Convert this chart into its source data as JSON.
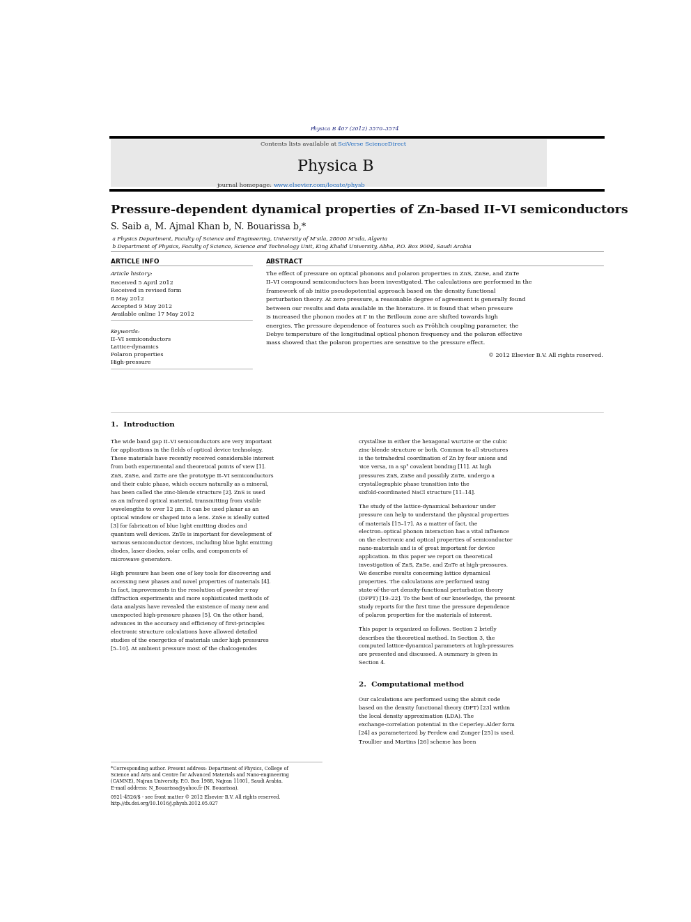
{
  "page_width": 9.92,
  "page_height": 13.23,
  "background": "#ffffff",
  "journal_ref": "Physica B 407 (2012) 3570–3574",
  "journal_ref_color": "#1a237e",
  "header_bg": "#e8e8e8",
  "contents_text": "Contents lists available at ",
  "sciverse_text": "SciVerse ScienceDirect",
  "journal_name": "Physica B",
  "journal_url": "www.elsevier.com/locate/physb",
  "journal_url_color": "#1565c0",
  "title": "Pressure-dependent dynamical properties of Zn-based II–VI semiconductors",
  "authors": "S. Saib a, M. Ajmal Khan b, N. Bouarissa b,*",
  "affil_a": " a Physics Department, Faculty of Science and Engineering, University of M’sila, 28000 M’sila, Algeria",
  "affil_b": " b Department of Physics, Faculty of Science, Science and Technology Unit, King Khalid University, Abha, P.O. Box 9004, Saudi Arabia",
  "article_info_title": "ARTICLE INFO",
  "abstract_title": "ABSTRACT",
  "article_history_label": "Article history:",
  "received": "Received 5 April 2012",
  "received_revised": "Received in revised form",
  "received_revised_date": "8 May 2012",
  "accepted": "Accepted 9 May 2012",
  "available": "Available online 17 May 2012",
  "keywords_label": "Keywords:",
  "keywords": [
    "II–VI semiconductors",
    "Lattice-dynamics",
    "Polaron properties",
    "High-pressure"
  ],
  "abstract_text": "The effect of pressure on optical phonons and polaron properties in ZnS, ZnSe, and ZnTe II–VI compound semiconductors has been investigated. The calculations are performed in the framework of ab initio pseudopotential approach based on the density functional perturbation theory. At zero pressure, a reasonable degree of agreement is generally found between our results and data available in the literature. It is found that when pressure is increased the phonon modes at Γ in the Brillouin zone are shifted towards high energies. The pressure dependence of features such as Fröhlich coupling parameter, the Debye temperature of the longitudinal optical phonon frequency and the polaron effective mass showed that the polaron properties are sensitive to the pressure effect.",
  "copyright": "© 2012 Elsevier B.V. All rights reserved.",
  "section1_title": "1.  Introduction",
  "section1_col1": "   The wide band gap II–VI semiconductors are very important for applications in the fields of optical device technology. These materials have recently received considerable interest from both experimental and theoretical points of view [1]. ZnS, ZnSe, and ZnTe are the prototype II–VI semiconductors and their cubic phase, which occurs naturally as a mineral, has been called the zinc-blende structure [2]. ZnS is used as an infrared optical material, transmitting from visible wavelengths to over 12 μm. It can be used planar as an optical window or shaped into a lens. ZnSe is ideally suited [3] for fabrication of blue light emitting diodes and quantum well devices. ZnTe is important for development of various semiconductor devices, including blue light emitting diodes, laser diodes, solar cells, and components of microwave generators.",
  "section1_col1b": "   High pressure has been one of key tools for discovering and accessing new phases and novel properties of materials [4]. In fact, improvements in the resolution of powder x-ray diffraction experiments and more sophisticated methods of data analysis have revealed the existence of many new and unexpected high-pressure phases [5]. On the other hand, advances in the accuracy and efficiency of first-principles electronic structure calculations have allowed detailed studies of the energetics of materials under high pressures [5–10]. At ambient pressure most of the chalcogenides",
  "section1_col2": "crystallise in either the hexagonal wurtzite or the cubic zinc-blende structure or both. Common to all structures is the tetrahedral coordination of Zn by four anions and vice versa, in a sp³ covalent bonding [11]. At high pressures ZnS, ZnSe and possibly ZnTe, undergo a crystallographic phase transition into the sixfold-coordinated NaCl structure [11–14].",
  "section1_col2b": "   The study of the lattice-dynamical behaviour under pressure can help to understand the physical properties of materials [15–17]. As a matter of fact, the electron–optical phonon interaction has a vital influence on the electronic and optical properties of semiconductor nano-materials and is of great important for device application. In this paper we report on theoretical investigation of ZnS, ZnSe, and ZnTe at high-pressures. We describe results concerning lattice dynamical properties. The calculations are performed using state-of-the-art density-functional perturbation theory (DFPT) [19–22]. To the best of our knowledge, the present study reports for the first time the pressure dependence of polaron properties for the materials of interest.",
  "section1_col2c": "   This paper is organized as follows. Section 2 briefly describes the theoretical method. In Section 3, the computed lattice-dynamical parameters at high-pressures are presented and discussed. A summary is given in Section 4.",
  "section2_title": "2.  Computational method",
  "section2_text": "   Our calculations are performed using the abinit code based on the density functional theory (DFT) [23] within the local density approximation (LDA). The exchange-correlation potential in the Ceperley–Alder form [24] as parameterized by Perdew and Zunger [25] is used. Troullier and Martins [26] scheme has been",
  "footer_note_lines": [
    "*Corresponding author. Present address: Department of Physics, College of",
    "Science and Arts and Centre for Advanced Materials and Nano-engineering",
    "(CAMNE), Najran University, P.O. Box 1988, Najran 11001, Saudi Arabia.",
    "E-mail address: N_Bouarissa@yahoo.fr (N. Bouarissa)."
  ],
  "footer_issn": "0921-4526/$ - see front matter © 2012 Elsevier B.V. All rights reserved.",
  "footer_doi": "http://dx.doi.org/10.1016/j.physb.2012.05.027"
}
